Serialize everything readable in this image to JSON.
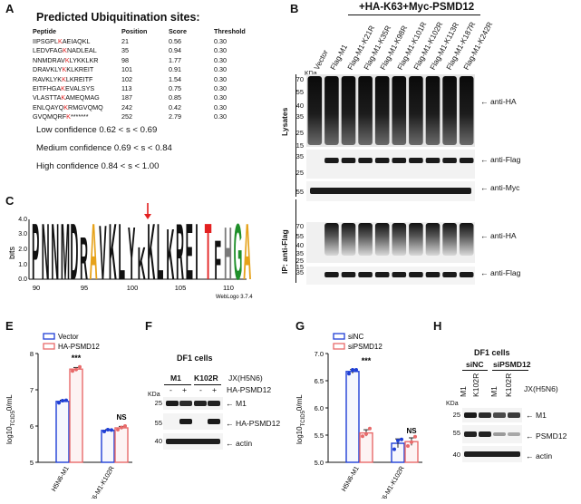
{
  "panels": {
    "A": "A",
    "B": "B",
    "C": "C",
    "E": "E",
    "F": "F",
    "G": "G",
    "H": "H"
  },
  "panelA": {
    "title": "Predicted Ubiquitination sites:",
    "headers": [
      "Peptide",
      "Position",
      "Score",
      "Threshold"
    ],
    "rows": [
      {
        "pre": "IIPSGPL",
        "k": "K",
        "post": "AEIAQKL",
        "pos": "21",
        "score": "0.56",
        "thr": "0.30"
      },
      {
        "pre": "LEDVFAG",
        "k": "K",
        "post": "NADLEAL",
        "pos": "35",
        "score": "0.94",
        "thr": "0.30"
      },
      {
        "pre": "NNMDRAV",
        "k": "K",
        "post": "LYKKLKR",
        "pos": "98",
        "score": "1.77",
        "thr": "0.30"
      },
      {
        "pre": "DRAVKLY",
        "k": "K",
        "post": "KLKREIT",
        "pos": "101",
        "score": "0.91",
        "thr": "0.30"
      },
      {
        "pre": "RAVKLYK",
        "k": "K",
        "post": "LKREITF",
        "pos": "102",
        "score": "1.54",
        "thr": "0.30"
      },
      {
        "pre": "EITFHGA",
        "k": "K",
        "post": "EVALSYS",
        "pos": "113",
        "score": "0.75",
        "thr": "0.30"
      },
      {
        "pre": "VLASTTA",
        "k": "K",
        "post": "AMEQMAG",
        "pos": "187",
        "score": "0.85",
        "thr": "0.30"
      },
      {
        "pre": "ENLQAYQ",
        "k": "K",
        "post": "RMGVQMQ",
        "pos": "242",
        "score": "0.42",
        "thr": "0.30"
      },
      {
        "pre": "GVQMQRF",
        "k": "K",
        "post": "*******",
        "pos": "252",
        "score": "2.79",
        "thr": "0.30"
      }
    ],
    "confidence": [
      "Low confidence 0.62 < s < 0.69",
      "Medium confidence 0.69 < s < 0.84",
      "High confidence 0.84 < s < 1.00"
    ]
  },
  "panelB": {
    "title": "+HA-K63+Myc-PSMD12",
    "lanes": [
      "Vector",
      "Flag-M1",
      "Flag-M1-K21R",
      "Flag-M1-K35R",
      "Flag-M1-K98R",
      "Flag-M1-K101R",
      "Flag-M1-K102R",
      "Flag-M1-K113R",
      "Flag-M1-K187R",
      "Flag-M1-K242R"
    ],
    "kda": "KDa",
    "lysates_label": "Lysates",
    "ip_label": "IP: anti-Flag",
    "mw_lysHA": [
      "70",
      "55",
      "40",
      "35",
      "25",
      "15"
    ],
    "mw_flag": [
      "35",
      "25"
    ],
    "mw_myc": [
      "55"
    ],
    "mw_ipHA": [
      "70",
      "55",
      "40",
      "35",
      "25",
      "15"
    ],
    "mw_ipFlag": [
      "35"
    ],
    "antibodies": {
      "lysHA": "anti-HA",
      "flag": "anti-Flag",
      "myc": "anti-Myc",
      "ipHA": "anti-HA",
      "ipFlag": "anti-Flag"
    }
  },
  "panelC": {
    "ylabel": "bits",
    "yticks": [
      "0.0",
      "1.0",
      "2.0",
      "3.0",
      "4.0"
    ],
    "xticks": [
      "90",
      "95",
      "100",
      "105",
      "110"
    ],
    "sequence": "PNNMDRAVKLYKKLKREITFHGA",
    "credit": "WebLogo 3.7.4"
  },
  "panelE": {
    "ylabel": "log10TCID50/mL",
    "yticks": [
      "5",
      "6",
      "7",
      "8"
    ],
    "legend": [
      {
        "name": "Vector",
        "color": "#1f3fd6"
      },
      {
        "name": "HA-PSMD12",
        "color": "#e86a6a"
      }
    ],
    "categories": [
      "H5N6-M1",
      "H5N6-M1-K102R"
    ],
    "sig": [
      "***",
      "NS"
    ]
  },
  "panelF": {
    "cells": "DF1 cells",
    "groups": [
      "M1",
      "K102R"
    ],
    "strain": "JX(H5N6)",
    "signs": [
      "-",
      "+",
      "-",
      "+"
    ],
    "construct": "HA-PSMD12",
    "kda": "KDa",
    "mw": [
      "25",
      "55",
      "40"
    ],
    "bands": [
      "M1",
      "HA-PSMD12",
      "actin"
    ]
  },
  "panelG": {
    "ylabel": "log10TCID50/mL",
    "yticks": [
      "5.0",
      "5.5",
      "6.0",
      "6.5",
      "7.0"
    ],
    "legend": [
      {
        "name": "siNC",
        "color": "#1f3fd6"
      },
      {
        "name": "siPSMD12",
        "color": "#e86a6a"
      }
    ],
    "categories": [
      "H5N6-M1",
      "H5N6-M1-K102R"
    ],
    "sig": [
      "***",
      "NS"
    ]
  },
  "panelH": {
    "cells": "DF1 cells",
    "groups": [
      "siNC",
      "siPSMD12"
    ],
    "lanes": [
      "M1",
      "K102R",
      "M1",
      "K102R"
    ],
    "strain": "JX(H5N6)",
    "kda": "KDa",
    "mw": [
      "25",
      "55",
      "40"
    ],
    "bands": [
      "M1",
      "PSMD12",
      "actin"
    ]
  },
  "chart_data": [
    {
      "type": "bar",
      "panel": "E",
      "ylabel": "log10TCID50/mL",
      "ylim": [
        5,
        8
      ],
      "categories": [
        "H5N6-M1",
        "H5N6-M1-K102R"
      ],
      "series": [
        {
          "name": "Vector",
          "values": [
            6.68,
            5.88
          ],
          "points": [
            [
              6.64,
              6.7,
              6.71
            ],
            [
              5.85,
              5.9,
              5.89
            ]
          ]
        },
        {
          "name": "HA-PSMD12",
          "values": [
            7.57,
            5.95
          ],
          "points": [
            [
              7.52,
              7.56,
              7.63
            ],
            [
              5.9,
              5.96,
              6.0
            ]
          ]
        }
      ],
      "annotations": [
        "***",
        "NS"
      ]
    },
    {
      "type": "bar",
      "panel": "G",
      "ylabel": "log10TCID50/mL",
      "ylim": [
        5.0,
        7.0
      ],
      "categories": [
        "H5N6-M1",
        "H5N6-M1-K102R"
      ],
      "series": [
        {
          "name": "siNC",
          "values": [
            6.67,
            5.35
          ],
          "points": [
            [
              6.63,
              6.7,
              6.7
            ],
            [
              5.24,
              5.4,
              5.42
            ]
          ]
        },
        {
          "name": "siPSMD12",
          "values": [
            5.54,
            5.38
          ],
          "points": [
            [
              5.48,
              5.52,
              5.62
            ],
            [
              5.3,
              5.37,
              5.47
            ]
          ]
        }
      ],
      "annotations": [
        "***",
        "NS"
      ]
    },
    {
      "type": "table",
      "panel": "A",
      "columns": [
        "Peptide",
        "Position",
        "Score",
        "Threshold"
      ],
      "rows": [
        [
          "IIPSGPLKAEIAQKL",
          "21",
          "0.56",
          "0.30"
        ],
        [
          "LEDVFAGKNADLEAL",
          "35",
          "0.94",
          "0.30"
        ],
        [
          "NNMDRAVKLYKKLKR",
          "98",
          "1.77",
          "0.30"
        ],
        [
          "DRAVKLYKKLKREIT",
          "101",
          "0.91",
          "0.30"
        ],
        [
          "RAVKLYKKLKREITF",
          "102",
          "1.54",
          "0.30"
        ],
        [
          "EITFHGAKEVALSYS",
          "113",
          "0.75",
          "0.30"
        ],
        [
          "VLASTTAKAMEQMAG",
          "187",
          "0.85",
          "0.30"
        ],
        [
          "ENLQAYQKRMGVQMQ",
          "242",
          "0.42",
          "0.30"
        ],
        [
          "GVQMQRFK*******",
          "252",
          "2.79",
          "0.30"
        ]
      ]
    }
  ]
}
